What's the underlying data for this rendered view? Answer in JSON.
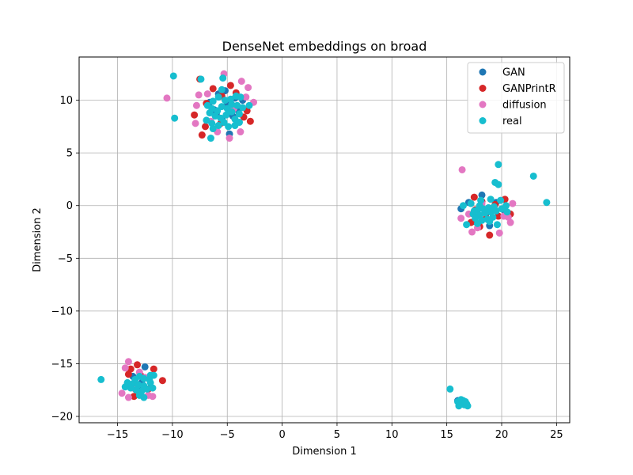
{
  "chart_data": {
    "type": "scatter",
    "title": "DenseNet embeddings on broad",
    "xlabel": "Dimension 1",
    "ylabel": "Dimension 2",
    "xlim": [
      -18.5,
      26.2
    ],
    "ylim": [
      -20.6,
      14.1
    ],
    "xticks": [
      -15,
      -10,
      -5,
      0,
      5,
      10,
      15,
      20,
      25
    ],
    "yticks": [
      -20,
      -15,
      -10,
      -5,
      0,
      5,
      10
    ],
    "xtick_labels": [
      "−15",
      "−10",
      "−5",
      "0",
      "5",
      "10",
      "15",
      "20",
      "25"
    ],
    "ytick_labels": [
      "−20",
      "−15",
      "−10",
      "−5",
      "0",
      "5",
      "10"
    ],
    "grid": true,
    "legend_position": "top-right",
    "series": [
      {
        "name": "GAN",
        "color": "#1f77b4",
        "points": [
          [
            -5.8,
            10.6
          ],
          [
            -5.0,
            9.6
          ],
          [
            -4.3,
            10.2
          ],
          [
            -6.2,
            9.1
          ],
          [
            -5.5,
            8.2
          ],
          [
            -4.8,
            6.8
          ],
          [
            -6.6,
            9.8
          ],
          [
            -4.0,
            9.0
          ],
          [
            -3.6,
            10.0
          ],
          [
            -5.2,
            10.9
          ],
          [
            -6.0,
            8.7
          ],
          [
            -4.5,
            8.5
          ],
          [
            18.2,
            1.0
          ],
          [
            16.3,
            -0.3
          ],
          [
            17.5,
            -1.5
          ],
          [
            18.6,
            -0.7
          ],
          [
            19.5,
            0.3
          ],
          [
            17.0,
            0.3
          ],
          [
            18.9,
            -1.9
          ],
          [
            20.2,
            -0.4
          ],
          [
            -12.5,
            -15.3
          ],
          [
            -13.0,
            -17.5
          ],
          [
            -13.6,
            -16.2
          ],
          [
            -12.8,
            -16.8
          ],
          [
            -14.1,
            -17.0
          ],
          [
            16.0,
            -18.5
          ],
          [
            16.4,
            -18.8
          ]
        ]
      },
      {
        "name": "GANPrintR",
        "color": "#d62728",
        "points": [
          [
            -7.5,
            12.0
          ],
          [
            -4.7,
            11.4
          ],
          [
            -8.0,
            8.6
          ],
          [
            -7.3,
            6.7
          ],
          [
            -7.0,
            7.5
          ],
          [
            -5.5,
            10.4
          ],
          [
            -3.2,
            9.0
          ],
          [
            -2.9,
            8.0
          ],
          [
            -6.3,
            11.1
          ],
          [
            -4.2,
            10.7
          ],
          [
            -6.9,
            9.7
          ],
          [
            -5.6,
            7.8
          ],
          [
            -3.5,
            8.4
          ],
          [
            17.5,
            0.8
          ],
          [
            18.2,
            0.4
          ],
          [
            19.4,
            0.1
          ],
          [
            18.9,
            -2.8
          ],
          [
            20.8,
            -0.8
          ],
          [
            17.6,
            -0.4
          ],
          [
            18.0,
            -2.0
          ],
          [
            19.7,
            -1.0
          ],
          [
            20.3,
            0.6
          ],
          [
            18.6,
            -1.2
          ],
          [
            17.2,
            -1.6
          ],
          [
            -13.8,
            -15.5
          ],
          [
            -13.2,
            -15.1
          ],
          [
            -11.7,
            -15.5
          ],
          [
            -10.9,
            -16.6
          ],
          [
            -13.5,
            -18.1
          ],
          [
            -12.9,
            -16.1
          ],
          [
            -14.0,
            -16.0
          ],
          [
            -12.2,
            -17.4
          ]
        ]
      },
      {
        "name": "diffusion",
        "color": "#e377c2",
        "points": [
          [
            -10.5,
            10.2
          ],
          [
            -5.3,
            12.5
          ],
          [
            -3.7,
            11.8
          ],
          [
            -3.1,
            11.2
          ],
          [
            -7.8,
            9.5
          ],
          [
            -7.9,
            7.8
          ],
          [
            -4.8,
            6.4
          ],
          [
            -3.8,
            7.0
          ],
          [
            -2.6,
            9.8
          ],
          [
            -7.6,
            10.5
          ],
          [
            -6.5,
            8.0
          ],
          [
            -5.9,
            7.0
          ],
          [
            -4.4,
            9.2
          ],
          [
            -6.8,
            10.6
          ],
          [
            -3.3,
            10.3
          ],
          [
            16.4,
            3.4
          ],
          [
            16.3,
            -1.2
          ],
          [
            17.3,
            -2.5
          ],
          [
            19.8,
            -2.6
          ],
          [
            20.6,
            -1.1
          ],
          [
            20.8,
            -1.6
          ],
          [
            21.0,
            0.2
          ],
          [
            20.2,
            -1.0
          ],
          [
            17.8,
            -2.1
          ],
          [
            19.1,
            -0.4
          ],
          [
            18.2,
            0.2
          ],
          [
            17.0,
            -0.8
          ],
          [
            -14.3,
            -15.4
          ],
          [
            -14.0,
            -14.8
          ],
          [
            -14.6,
            -17.8
          ],
          [
            -14.0,
            -18.2
          ],
          [
            -12.2,
            -18.0
          ],
          [
            -11.8,
            -18.1
          ],
          [
            -13.4,
            -17.4
          ],
          [
            -12.5,
            -16.3
          ],
          [
            -13.0,
            -15.8
          ]
        ]
      },
      {
        "name": "real",
        "color": "#17becf",
        "points": [
          [
            -9.9,
            12.3
          ],
          [
            -7.4,
            12.0
          ],
          [
            -9.8,
            8.3
          ],
          [
            -5.5,
            11.0
          ],
          [
            -5.8,
            10.3
          ],
          [
            -6.3,
            9.9
          ],
          [
            -5.2,
            10.0
          ],
          [
            -4.7,
            10.1
          ],
          [
            -4.2,
            10.4
          ],
          [
            -3.8,
            10.3
          ],
          [
            -6.8,
            9.5
          ],
          [
            -6.4,
            9.2
          ],
          [
            -5.9,
            9.0
          ],
          [
            -5.5,
            9.4
          ],
          [
            -5.0,
            9.2
          ],
          [
            -4.6,
            9.6
          ],
          [
            -4.1,
            9.5
          ],
          [
            -3.6,
            9.3
          ],
          [
            -6.6,
            8.8
          ],
          [
            -6.1,
            8.5
          ],
          [
            -5.6,
            8.3
          ],
          [
            -5.1,
            8.6
          ],
          [
            -4.6,
            8.9
          ],
          [
            -4.3,
            8.2
          ],
          [
            -3.9,
            8.7
          ],
          [
            -6.9,
            8.1
          ],
          [
            -6.4,
            7.8
          ],
          [
            -5.8,
            7.6
          ],
          [
            -5.3,
            7.9
          ],
          [
            -4.9,
            7.5
          ],
          [
            -4.3,
            7.6
          ],
          [
            -3.9,
            7.9
          ],
          [
            -6.3,
            7.3
          ],
          [
            -6.5,
            6.4
          ],
          [
            -3.0,
            9.5
          ],
          [
            -5.4,
            12.1
          ],
          [
            19.7,
            3.9
          ],
          [
            19.4,
            2.2
          ],
          [
            19.7,
            2.0
          ],
          [
            22.9,
            2.8
          ],
          [
            24.1,
            0.3
          ],
          [
            16.5,
            0.0
          ],
          [
            17.2,
            0.2
          ],
          [
            18.0,
            0.0
          ],
          [
            19.0,
            0.6
          ],
          [
            19.9,
            0.5
          ],
          [
            17.8,
            -0.4
          ],
          [
            18.3,
            -0.3
          ],
          [
            18.8,
            -0.2
          ],
          [
            19.3,
            -0.1
          ],
          [
            17.4,
            -0.8
          ],
          [
            18.0,
            -0.9
          ],
          [
            18.5,
            -0.7
          ],
          [
            19.0,
            -0.6
          ],
          [
            19.5,
            -0.5
          ],
          [
            20.0,
            -0.3
          ],
          [
            17.6,
            -1.2
          ],
          [
            18.2,
            -1.4
          ],
          [
            18.7,
            -1.3
          ],
          [
            19.2,
            -1.1
          ],
          [
            16.8,
            -1.8
          ],
          [
            17.8,
            -1.7
          ],
          [
            19.6,
            -1.8
          ],
          [
            20.4,
            0.0
          ],
          [
            18.1,
            0.5
          ],
          [
            17.5,
            -0.5
          ],
          [
            18.9,
            -1.5
          ],
          [
            20.5,
            -0.6
          ],
          [
            -16.5,
            -16.5
          ],
          [
            -13.4,
            -16.5
          ],
          [
            -13.0,
            -16.2
          ],
          [
            -12.6,
            -16.4
          ],
          [
            -12.0,
            -16.1
          ],
          [
            -13.6,
            -16.9
          ],
          [
            -13.1,
            -17.0
          ],
          [
            -12.6,
            -17.1
          ],
          [
            -12.0,
            -16.8
          ],
          [
            -13.3,
            -17.5
          ],
          [
            -12.8,
            -17.6
          ],
          [
            -12.3,
            -17.4
          ],
          [
            -11.8,
            -17.3
          ],
          [
            -13.0,
            -18.0
          ],
          [
            -12.6,
            -18.2
          ],
          [
            -14.1,
            -16.8
          ],
          [
            -13.8,
            -17.3
          ],
          [
            -14.3,
            -17.2
          ],
          [
            -12.1,
            -16.5
          ],
          [
            -11.7,
            -16.1
          ],
          [
            15.3,
            -17.4
          ],
          [
            16.0,
            -18.6
          ],
          [
            16.2,
            -18.8
          ],
          [
            16.4,
            -18.7
          ],
          [
            16.6,
            -18.9
          ],
          [
            16.8,
            -18.8
          ],
          [
            16.1,
            -19.0
          ],
          [
            16.5,
            -18.5
          ],
          [
            16.9,
            -19.0
          ],
          [
            16.3,
            -18.4
          ],
          [
            16.7,
            -18.6
          ]
        ]
      }
    ]
  }
}
